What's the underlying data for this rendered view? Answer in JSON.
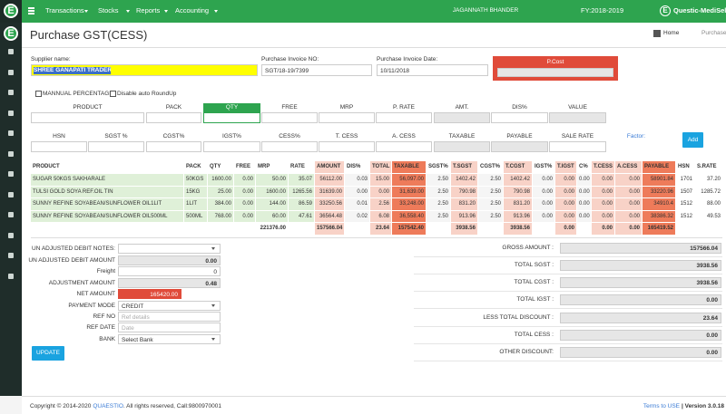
{
  "nav": {
    "logo": "E",
    "menus": [
      "Transactions",
      "Stocks",
      "Reports",
      "Accounting"
    ],
    "user": "JAGANNATH BHANDER",
    "fy": "FY:2018-2019",
    "company_logo": "E",
    "company": "Questic-MediSell"
  },
  "page": {
    "title": "Purchase GST(CESS)",
    "breadcrumb": [
      "Home",
      "Purchase"
    ]
  },
  "header_form": {
    "supplier_label": "Supplier name:",
    "supplier": "SHREE GANAPATI TRADERS",
    "invoice_no_label": "Purchase Invoice NO:",
    "invoice_no": "SGT/18-19/7399",
    "invoice_date_label": "Purchase Invoice Date:",
    "invoice_date": "10/11/2018",
    "pcost_label": "P.Cost"
  },
  "checkboxes": [
    "MANNUAL PERCENTAGE",
    "Disable auto RoundUp"
  ],
  "entry_row1": [
    "PRODUCT",
    "PACK",
    "QTY",
    "FREE",
    "MRP",
    "P. RATE",
    "AMT.",
    "DIS%",
    "VALUE"
  ],
  "entry_row2": [
    "HSN",
    "SGST %",
    "CGST%",
    "IGST%",
    "CESS%",
    "T. CESS",
    "A. CESS",
    "TAXABLE",
    "PAYABLE",
    "SALE RATE",
    "Factor:"
  ],
  "add_button": "Add",
  "table": {
    "headers": [
      "PRODUCT",
      "PACK",
      "QTY",
      "FREE",
      "MRP",
      "RATE",
      "AMOUNT",
      "DIS%",
      "TOTAL",
      "TAXABLE",
      "SGST%",
      "T.SGST",
      "CGST%",
      "T.CGST",
      "IGST%",
      "T.IGST",
      "C%",
      "T.CESS",
      "A.CESS",
      "PAYABLE",
      "HSN",
      "S.RATE"
    ],
    "rows": [
      [
        "SUGAR 50KGS SAKHARALE",
        "50KGS",
        "1600.00",
        "0.00",
        "50.00",
        "35.07",
        "56112.00",
        "0.03",
        "15.00",
        "56,097.00",
        "2.50",
        "1402.42",
        "2.50",
        "1402.42",
        "0.00",
        "0.00",
        "0.00",
        "0.00",
        "0.00",
        "58901.84",
        "1701",
        "37.20"
      ],
      [
        "TULSI GOLD SOYA REF.OIL TIN",
        "15KG",
        "25.00",
        "0.00",
        "1600.00",
        "1265.56",
        "31639.00",
        "0.00",
        "0.00",
        "31,639.00",
        "2.50",
        "790.98",
        "2.50",
        "790.98",
        "0.00",
        "0.00",
        "0.00",
        "0.00",
        "0.00",
        "33220.96",
        "1507",
        "1285.72"
      ],
      [
        "SUNNY REFINE SOYABEAN/SUNFLOWER OIL1LIT",
        "1LIT",
        "384.00",
        "0.00",
        "144.00",
        "86.59",
        "33250.56",
        "0.01",
        "2.56",
        "33,248.00",
        "2.50",
        "831.20",
        "2.50",
        "831.20",
        "0.00",
        "0.00",
        "0.00",
        "0.00",
        "0.00",
        "34910.4",
        "1512",
        "88.00"
      ],
      [
        "SUNNY REFINE SOYABEAN/SUNFLOWER OIL500ML",
        "500ML",
        "768.00",
        "0.00",
        "60.00",
        "47.61",
        "36564.48",
        "0.02",
        "6.08",
        "36,558.40",
        "2.50",
        "913.96",
        "2.50",
        "913.96",
        "0.00",
        "0.00",
        "0.00",
        "0.00",
        "0.00",
        "38386.32",
        "1512",
        "49.53"
      ]
    ],
    "totals": [
      null,
      null,
      null,
      null,
      "221376.00",
      null,
      "157566.04",
      null,
      "23.64",
      "157542.40",
      null,
      "3938.56",
      null,
      "3938.56",
      null,
      "0.00",
      null,
      "0.00",
      "0.00",
      "165419.52",
      null,
      null
    ]
  },
  "left_summary": [
    {
      "label": "UN ADJUSTED DEBIT NOTES:",
      "value": null
    },
    {
      "label": "UN ADJUSTED DEBIT AMOUNT",
      "value": "0.00"
    },
    {
      "label": "Freight",
      "value": "0"
    },
    {
      "label": "ADJUSTMENT AMOUNT",
      "value": "0.48"
    },
    {
      "label": "NET AMOUNT",
      "value": "165420.00"
    },
    {
      "label": "PAYMENT MODE",
      "value": "CREDIT"
    },
    {
      "label": "REF NO",
      "placeholder": "Ref details"
    },
    {
      "label": "REF DATE",
      "placeholder": "Date"
    },
    {
      "label": "BANK",
      "value": "Select Bank"
    }
  ],
  "update_button": "UPDATE",
  "right_summary": [
    {
      "label": "GROSS AMOUNT :",
      "value": "157566.04"
    },
    {
      "label": "TOTAL SGST :",
      "value": "3938.56"
    },
    {
      "label": "TOTAL CGST :",
      "value": "3938.56"
    },
    {
      "label": "TOTAL IGST :",
      "value": "0.00"
    },
    {
      "label": "LESS TOTAL DISCOUNT :",
      "value": "23.64"
    },
    {
      "label": "TOTAL CESS :",
      "value": "0.00"
    },
    {
      "label": "OTHER DISCOUNT:",
      "value": "0.00"
    }
  ],
  "footer": {
    "copyright": "Copyright © 2014-2020",
    "brand": "QUAESTIO",
    "rights": ". All rights reserved, Call:9800970001",
    "terms": "Terms to USE",
    "version": "| Version 3.0.18"
  }
}
